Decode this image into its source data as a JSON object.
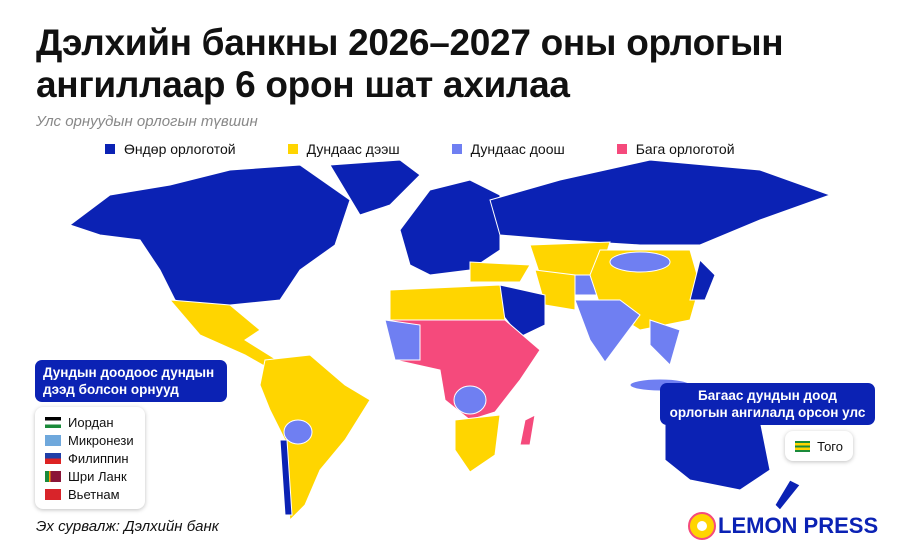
{
  "header": {
    "title": "Дэлхийн банкны 2026–2027 оны орлогын ангиллаар 6 орон шат ахилаа",
    "subtitle": "Улс орнуудын орлогын түвшин"
  },
  "legend": [
    {
      "label": "Өндөр орлоготой",
      "color": "#0b22b4"
    },
    {
      "label": "Дундаас дээш",
      "color": "#ffd500"
    },
    {
      "label": "Дундаас доош",
      "color": "#6f7ff2"
    },
    {
      "label": "Бага орлоготой",
      "color": "#f54a7c"
    }
  ],
  "callouts": [
    {
      "title": "Дундын доодоос дундын дээд болсон орнууд",
      "countries": [
        "Иордан",
        "Микронези",
        "Филиппин",
        "Шри Ланк",
        "Вьетнам"
      ]
    },
    {
      "title": "Багаас дундын доод орлогын ангилалд орсон улс",
      "countries": [
        "Того"
      ]
    }
  ],
  "footer": {
    "source": "Эх сурвалж: Дэлхийн банк",
    "brand": "LEMON PRESS"
  }
}
